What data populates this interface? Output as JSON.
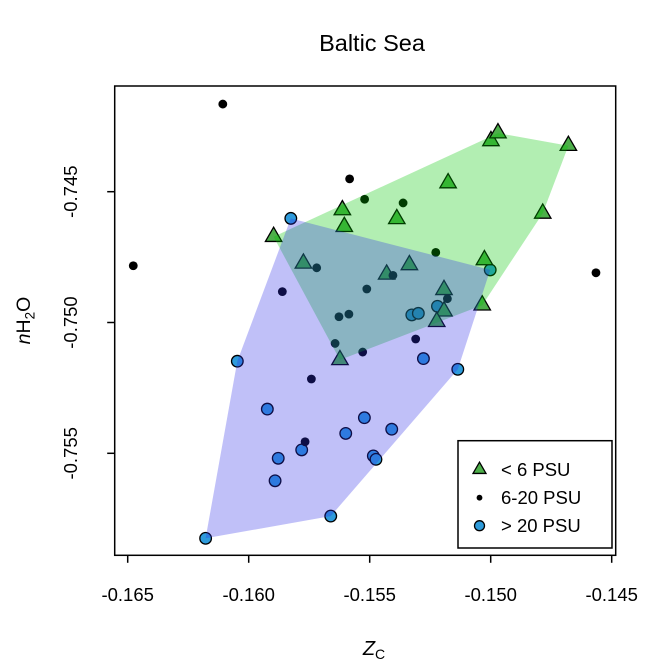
{
  "title": "Baltic Sea",
  "x_axis": {
    "label_main": "Z",
    "label_sub": "C",
    "tick_labels": [
      "-0.165",
      "-0.160",
      "-0.155",
      "-0.150",
      "-0.145"
    ]
  },
  "y_axis": {
    "label_prefix": "n",
    "label_main": "H",
    "label_sub": "2",
    "label_suffix": "O",
    "tick_labels": [
      "-0.745",
      "-0.750",
      "-0.755"
    ]
  },
  "legend": {
    "items": [
      {
        "label": "< 6 PSU",
        "marker": "triangle",
        "color": "#4DAF4A"
      },
      {
        "label": "6-20 PSU",
        "marker": "dot",
        "color": "#000000"
      },
      {
        "label": "> 20 PSU",
        "marker": "circle",
        "color": "#2E9BDB"
      }
    ]
  },
  "colors": {
    "marker_stroke": "#000000",
    "triangle_fill": "#4DAF4A",
    "circle_fill": "#2E9BDB",
    "dot_fill": "#000000",
    "hull_green": "#00C800",
    "hull_blue": "#3030E8",
    "axis": "#000000",
    "background": "#FFFFFF"
  },
  "chart_data": {
    "type": "scatter",
    "title": "Baltic Sea",
    "xlabel": "Z_C",
    "ylabel": "nH2O",
    "xlim": [
      -0.1655,
      -0.1448
    ],
    "ylim": [
      -0.7589,
      -0.741
    ],
    "x_ticks": [
      -0.165,
      -0.16,
      -0.155,
      -0.15,
      -0.145
    ],
    "y_ticks": [
      -0.745,
      -0.75,
      -0.755
    ],
    "grid": false,
    "legend_position": "bottom-right",
    "series": [
      {
        "name": "< 6 PSU",
        "marker": "triangle",
        "color": "#4DAF4A",
        "points": [
          [
            -0.14999,
            -0.74306
          ],
          [
            -0.1497,
            -0.74276
          ],
          [
            -0.14679,
            -0.74324
          ],
          [
            -0.15176,
            -0.74467
          ],
          [
            -0.14785,
            -0.74583
          ],
          [
            -0.15613,
            -0.7457
          ],
          [
            -0.15605,
            -0.74634
          ],
          [
            -0.15388,
            -0.74604
          ],
          [
            -0.15897,
            -0.74672
          ],
          [
            -0.15774,
            -0.74774
          ],
          [
            -0.15336,
            -0.7478
          ],
          [
            -0.1543,
            -0.74816
          ],
          [
            -0.15026,
            -0.74761
          ],
          [
            -0.15193,
            -0.74875
          ],
          [
            -0.15193,
            -0.74957
          ],
          [
            -0.15223,
            -0.74997
          ],
          [
            -0.15035,
            -0.74934
          ],
          [
            -0.15623,
            -0.75143
          ]
        ]
      },
      {
        "name": "6-20 PSU",
        "marker": "dot",
        "color": "#000000",
        "points": [
          [
            -0.16107,
            -0.74165
          ],
          [
            -0.16477,
            -0.74783
          ],
          [
            -0.15583,
            -0.74451
          ],
          [
            -0.15521,
            -0.74529
          ],
          [
            -0.15362,
            -0.74543
          ],
          [
            -0.15227,
            -0.74732
          ],
          [
            -0.15719,
            -0.74791
          ],
          [
            -0.15861,
            -0.74882
          ],
          [
            -0.15512,
            -0.74872
          ],
          [
            -0.15404,
            -0.7482
          ],
          [
            -0.15179,
            -0.74909
          ],
          [
            -0.15627,
            -0.74978
          ],
          [
            -0.15586,
            -0.74968
          ],
          [
            -0.1531,
            -0.75063
          ],
          [
            -0.15643,
            -0.7508
          ],
          [
            -0.15529,
            -0.75113
          ],
          [
            -0.15741,
            -0.75216
          ],
          [
            -0.15767,
            -0.75456
          ],
          [
            -0.14565,
            -0.7481
          ]
        ]
      },
      {
        "name": "> 20 PSU",
        "marker": "circle",
        "color": "#2E9BDB",
        "points": [
          [
            -0.15826,
            -0.74602
          ],
          [
            -0.15002,
            -0.74799
          ],
          [
            -0.1522,
            -0.74938
          ],
          [
            -0.15326,
            -0.74971
          ],
          [
            -0.15299,
            -0.74965
          ],
          [
            -0.16047,
            -0.75148
          ],
          [
            -0.15278,
            -0.75138
          ],
          [
            -0.15136,
            -0.75179
          ],
          [
            -0.15923,
            -0.75331
          ],
          [
            -0.15522,
            -0.75364
          ],
          [
            -0.15409,
            -0.75408
          ],
          [
            -0.15599,
            -0.75424
          ],
          [
            -0.15781,
            -0.75487
          ],
          [
            -0.15878,
            -0.75519
          ],
          [
            -0.15485,
            -0.7551
          ],
          [
            -0.15474,
            -0.75523
          ],
          [
            -0.15891,
            -0.75605
          ],
          [
            -0.15661,
            -0.7574
          ],
          [
            -0.16178,
            -0.75825
          ]
        ]
      }
    ],
    "hulls": [
      {
        "series": "< 6 PSU",
        "fill": "#00C800",
        "opacity": 0.3,
        "vertices": [
          [
            -0.15897,
            -0.74672
          ],
          [
            -0.1497,
            -0.74276
          ],
          [
            -0.14679,
            -0.74324
          ],
          [
            -0.14785,
            -0.74583
          ],
          [
            -0.15035,
            -0.74934
          ],
          [
            -0.15623,
            -0.75143
          ]
        ]
      },
      {
        "series": "> 20 PSU",
        "fill": "#3030E8",
        "opacity": 0.3,
        "vertices": [
          [
            -0.15826,
            -0.74602
          ],
          [
            -0.15002,
            -0.74799
          ],
          [
            -0.15136,
            -0.75179
          ],
          [
            -0.15661,
            -0.7574
          ],
          [
            -0.16178,
            -0.75825
          ],
          [
            -0.16047,
            -0.75148
          ]
        ]
      }
    ]
  }
}
